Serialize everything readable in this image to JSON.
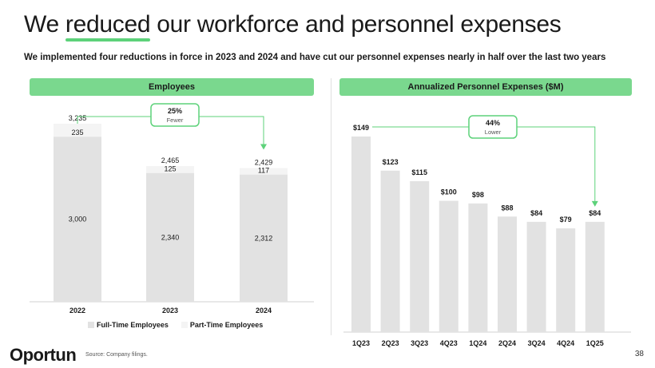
{
  "slide": {
    "title_before": "We ",
    "title_highlight": "reduced",
    "title_after": " our workforce and personnel expenses",
    "subtitle": "We implemented four reductions in force in 2023 and 2024 and have cut our personnel expenses nearly in half over the last two years",
    "source": "Source: Company filings.",
    "page_number": "38",
    "logo_text": "Oportun",
    "accent_color": "#5dd27a"
  },
  "chart_data": [
    {
      "type": "bar",
      "stacked": true,
      "title": "Employees",
      "categories": [
        "2022",
        "2023",
        "2024"
      ],
      "series": [
        {
          "name": "Full-Time Employees",
          "values": [
            3000,
            2340,
            2312
          ],
          "labels": [
            "3,000",
            "2,340",
            "2,312"
          ],
          "color": "#e2e2e2"
        },
        {
          "name": "Part-Time Employees",
          "values": [
            235,
            125,
            117
          ],
          "labels": [
            "235",
            "125",
            "117"
          ],
          "color": "#f4f4f4"
        }
      ],
      "totals": [
        "3,235",
        "2,465",
        "2,429"
      ],
      "annotation": {
        "value": "25%",
        "text": "Fewer",
        "from": "2022",
        "to": "2024"
      },
      "ylim": [
        0,
        3235
      ]
    },
    {
      "type": "bar",
      "title": "Annualized Personnel Expenses ($M)",
      "categories": [
        "1Q23",
        "2Q23",
        "3Q23",
        "4Q23",
        "1Q24",
        "2Q24",
        "3Q24",
        "4Q24",
        "1Q25"
      ],
      "values": [
        149,
        123,
        115,
        100,
        98,
        88,
        84,
        79,
        84
      ],
      "labels": [
        "$149",
        "$123",
        "$115",
        "$100",
        "$98",
        "$88",
        "$84",
        "$79",
        "$84"
      ],
      "color": "#e2e2e2",
      "annotation": {
        "value": "44%",
        "text": "Lower",
        "from": "1Q23",
        "to": "1Q25"
      },
      "ylim": [
        0,
        149
      ]
    }
  ]
}
